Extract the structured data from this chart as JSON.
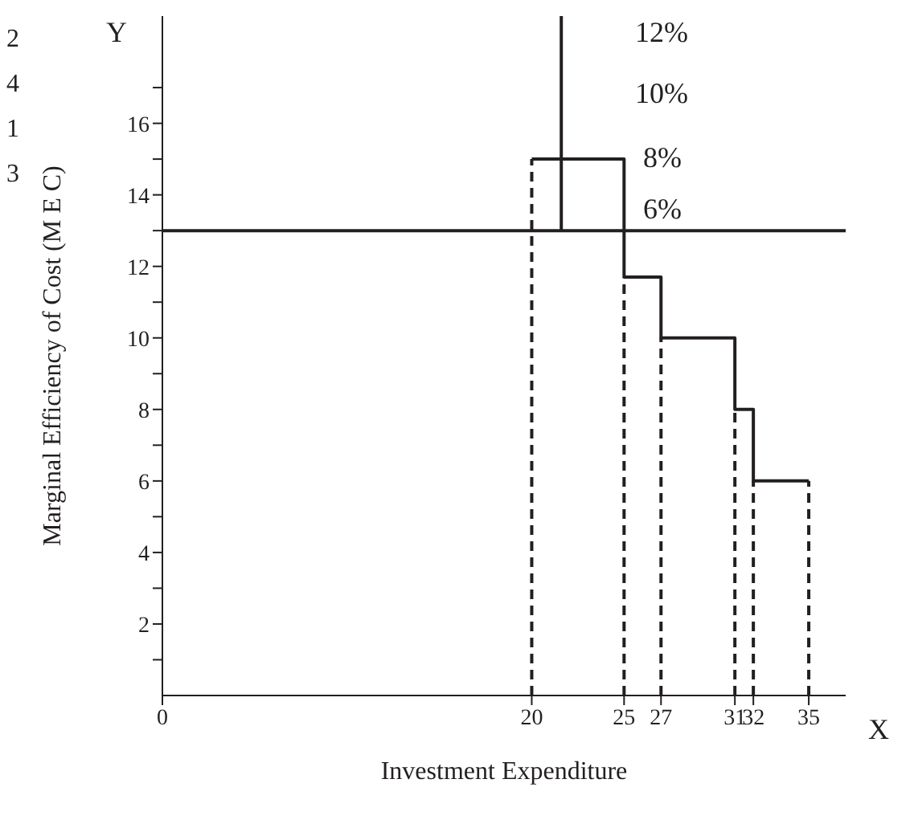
{
  "chart_data": {
    "type": "step",
    "xlabel": "Investment Expenditure",
    "ylabel": "Marginal Efficiency of Cost (M E C)",
    "annotations": [
      "2",
      "4",
      "1",
      "3",
      "12%",
      "10%",
      "8%",
      "6%",
      "Y",
      "X"
    ],
    "xlim": [
      0,
      37
    ],
    "xticks": [
      0,
      20,
      25,
      27,
      31,
      32,
      35
    ],
    "ylim": [
      0,
      19
    ],
    "yticks": [
      {
        "value": 1,
        "label": null
      },
      2,
      {
        "value": 3,
        "label": null
      },
      4,
      {
        "value": 5,
        "label": null
      },
      6,
      {
        "value": 7,
        "label": null
      },
      8,
      {
        "value": 9,
        "label": null
      },
      10,
      {
        "value": 11,
        "label": null
      },
      12,
      {
        "value": 13,
        "label": null
      },
      14,
      {
        "value": 15,
        "label": null
      },
      16,
      {
        "value": 17,
        "label": null
      }
    ],
    "marker": "none",
    "grid": false,
    "legend": false,
    "ref_lines": [
      {
        "axis": "y",
        "value": 13,
        "color": "#231f20"
      }
    ],
    "series": [
      {
        "color": "#231f20",
        "x": [
          20,
          25,
          27,
          31,
          32,
          35
        ],
        "values": [
          15,
          11.7,
          10,
          8,
          6,
          6
        ]
      },
      {
        "type": "line",
        "line_style": "dashed",
        "color": "#231f20",
        "x": [
          20,
          20,
          null,
          25,
          25,
          null,
          27,
          27,
          null,
          31,
          31,
          null,
          32,
          32,
          null,
          35,
          35
        ],
        "values": [
          0,
          15,
          null,
          0,
          11.7,
          null,
          0,
          10,
          null,
          0,
          8,
          null,
          0,
          6,
          null,
          0,
          6
        ]
      },
      {
        "type": "line",
        "color": "#231f20",
        "x": [
          21.6,
          21.6
        ],
        "values": [
          13,
          19
        ]
      }
    ]
  }
}
